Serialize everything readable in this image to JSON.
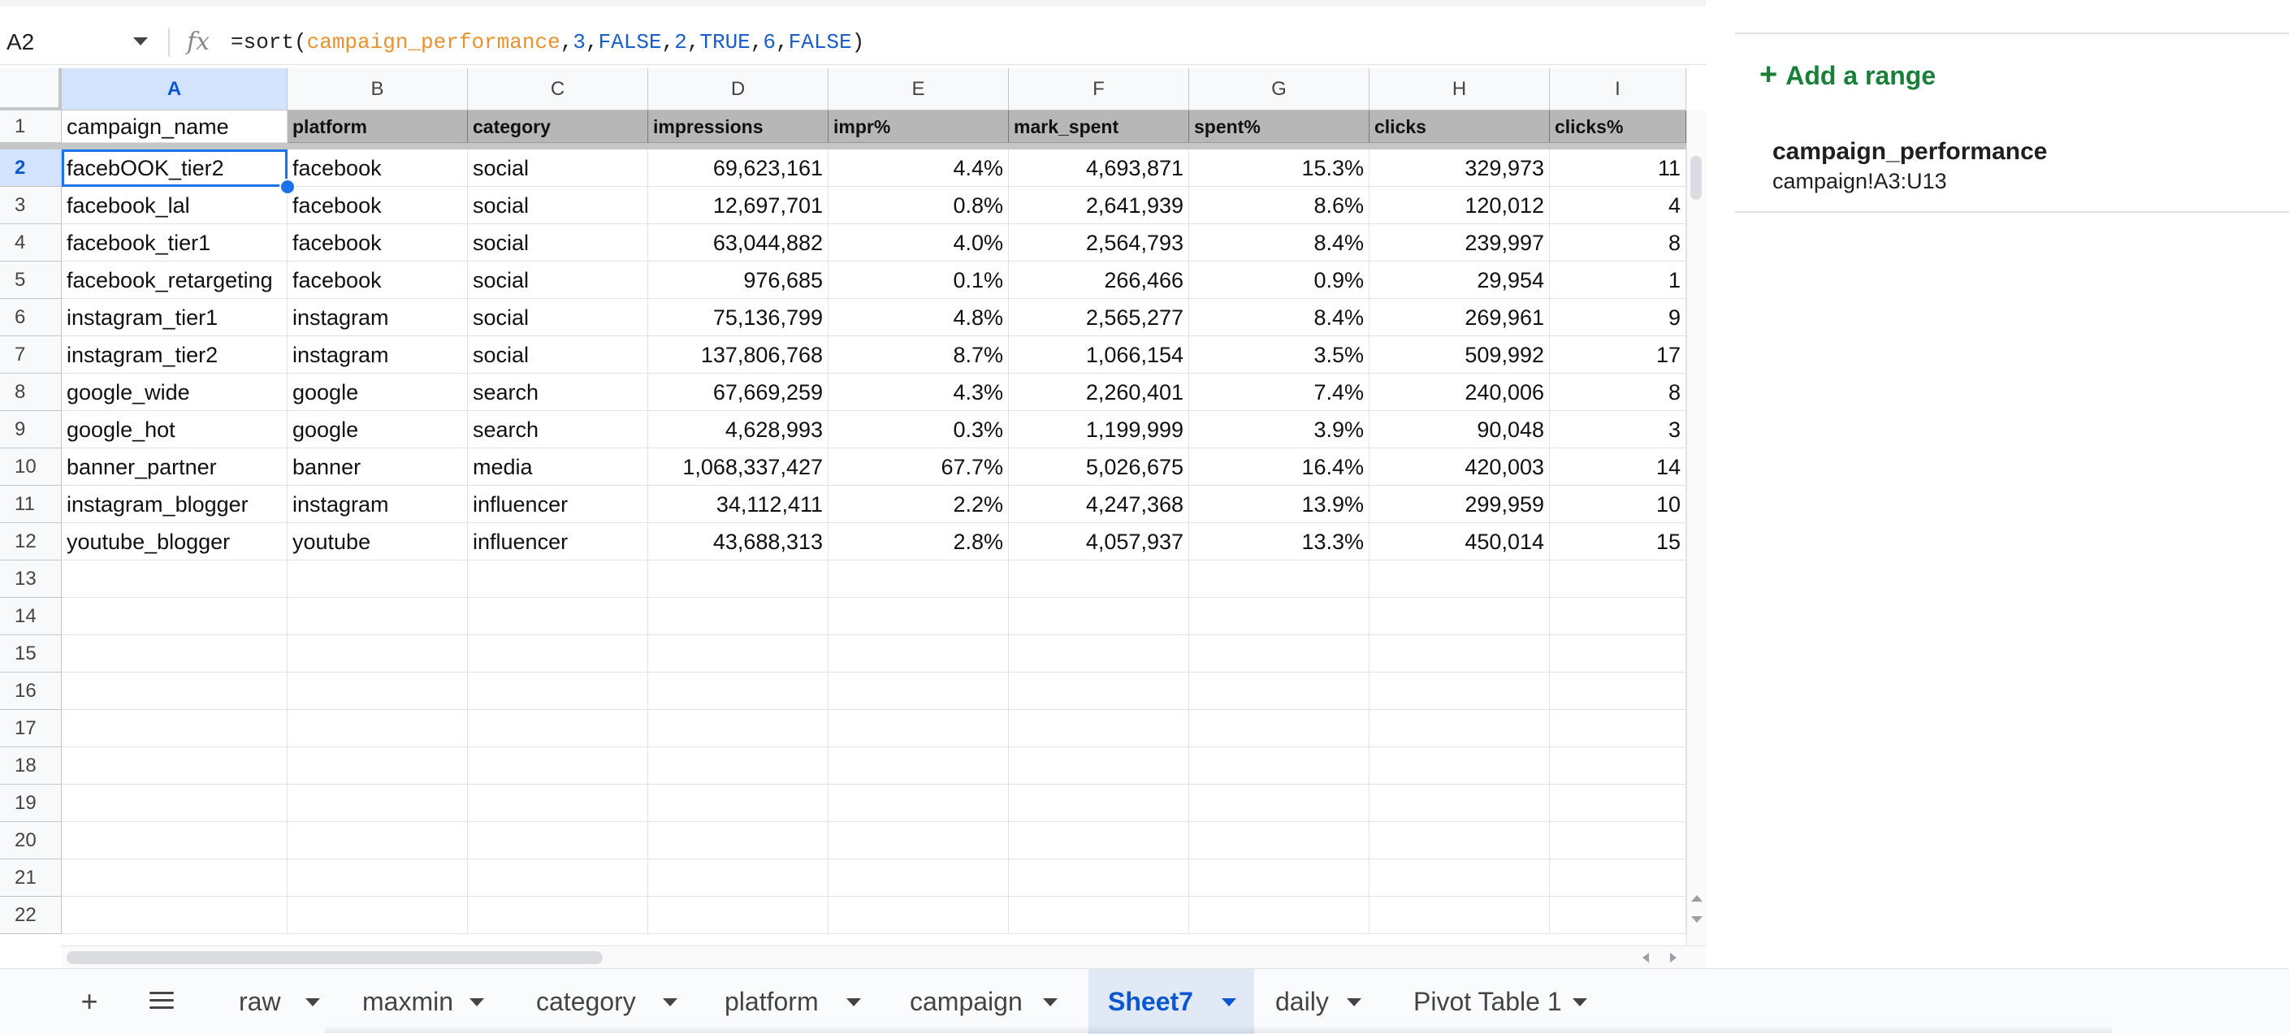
{
  "formula_bar": {
    "cell_ref": "A2",
    "formula_parts": [
      {
        "text": "=sort(",
        "kind": "plain"
      },
      {
        "text": "campaign_performance",
        "kind": "range"
      },
      {
        "text": ",",
        "kind": "plain"
      },
      {
        "text": "3",
        "kind": "num"
      },
      {
        "text": ",",
        "kind": "plain"
      },
      {
        "text": "FALSE",
        "kind": "bool"
      },
      {
        "text": ",",
        "kind": "plain"
      },
      {
        "text": "2",
        "kind": "num"
      },
      {
        "text": ",",
        "kind": "plain"
      },
      {
        "text": "TRUE",
        "kind": "bool"
      },
      {
        "text": ",",
        "kind": "plain"
      },
      {
        "text": "6",
        "kind": "num"
      },
      {
        "text": ",",
        "kind": "plain"
      },
      {
        "text": "FALSE",
        "kind": "bool"
      },
      {
        "text": ")",
        "kind": "plain"
      }
    ],
    "fx_label": "fx"
  },
  "columns": [
    "A",
    "B",
    "C",
    "D",
    "E",
    "F",
    "G",
    "H",
    "I"
  ],
  "active_column": "A",
  "active_row": "2",
  "header_row": [
    "campaign_name",
    "platform",
    "category",
    "impressions",
    "impr%",
    "mark_spent",
    "spent%",
    "clicks",
    "clicks%"
  ],
  "rows": [
    [
      "facebOOK_tier2",
      "facebook",
      "social",
      "69,623,161",
      "4.4%",
      "4,693,871",
      "15.3%",
      "329,973",
      "11"
    ],
    [
      "facebook_lal",
      "facebook",
      "social",
      "12,697,701",
      "0.8%",
      "2,641,939",
      "8.6%",
      "120,012",
      "4"
    ],
    [
      "facebook_tier1",
      "facebook",
      "social",
      "63,044,882",
      "4.0%",
      "2,564,793",
      "8.4%",
      "239,997",
      "8"
    ],
    [
      "facebook_retargeting",
      "facebook",
      "social",
      "976,685",
      "0.1%",
      "266,466",
      "0.9%",
      "29,954",
      "1"
    ],
    [
      "instagram_tier1",
      "instagram",
      "social",
      "75,136,799",
      "4.8%",
      "2,565,277",
      "8.4%",
      "269,961",
      "9"
    ],
    [
      "instagram_tier2",
      "instagram",
      "social",
      "137,806,768",
      "8.7%",
      "1,066,154",
      "3.5%",
      "509,992",
      "17"
    ],
    [
      "google_wide",
      "google",
      "search",
      "67,669,259",
      "4.3%",
      "2,260,401",
      "7.4%",
      "240,006",
      "8"
    ],
    [
      "google_hot",
      "google",
      "search",
      "4,628,993",
      "0.3%",
      "1,199,999",
      "3.9%",
      "90,048",
      "3"
    ],
    [
      "banner_partner",
      "banner",
      "media",
      "1,068,337,427",
      "67.7%",
      "5,026,675",
      "16.4%",
      "420,003",
      "14"
    ],
    [
      "instagram_blogger",
      "instagram",
      "influencer",
      "34,112,411",
      "2.2%",
      "4,247,368",
      "13.9%",
      "299,959",
      "10"
    ],
    [
      "youtube_blogger",
      "youtube",
      "influencer",
      "43,688,313",
      "2.8%",
      "4,057,937",
      "13.3%",
      "450,014",
      "15"
    ]
  ],
  "row_numbers": [
    "1",
    "2",
    "3",
    "4",
    "5",
    "6",
    "7",
    "8",
    "9",
    "10",
    "11",
    "12",
    "13",
    "14",
    "15",
    "16",
    "17",
    "18",
    "19",
    "20",
    "21",
    "22"
  ],
  "sheet_tabs": [
    "raw",
    "maxmin",
    "category",
    "platform",
    "campaign",
    "Sheet7",
    "daily",
    "Pivot Table 1"
  ],
  "active_tab": "Sheet7",
  "tab_controls": {
    "add": "+"
  },
  "panel": {
    "add_range_plus": "+",
    "add_range_label": "Add a range",
    "range_name": "campaign_performance",
    "range_ref": "campaign!A3:U13"
  },
  "colors": {
    "range_token": "#e8912d",
    "number_token": "#1a5fc9",
    "selection": "#1a73e8",
    "header_fill": "#b7b7b7",
    "panel_accent": "#188038",
    "active_tab": "#0b57d0"
  }
}
